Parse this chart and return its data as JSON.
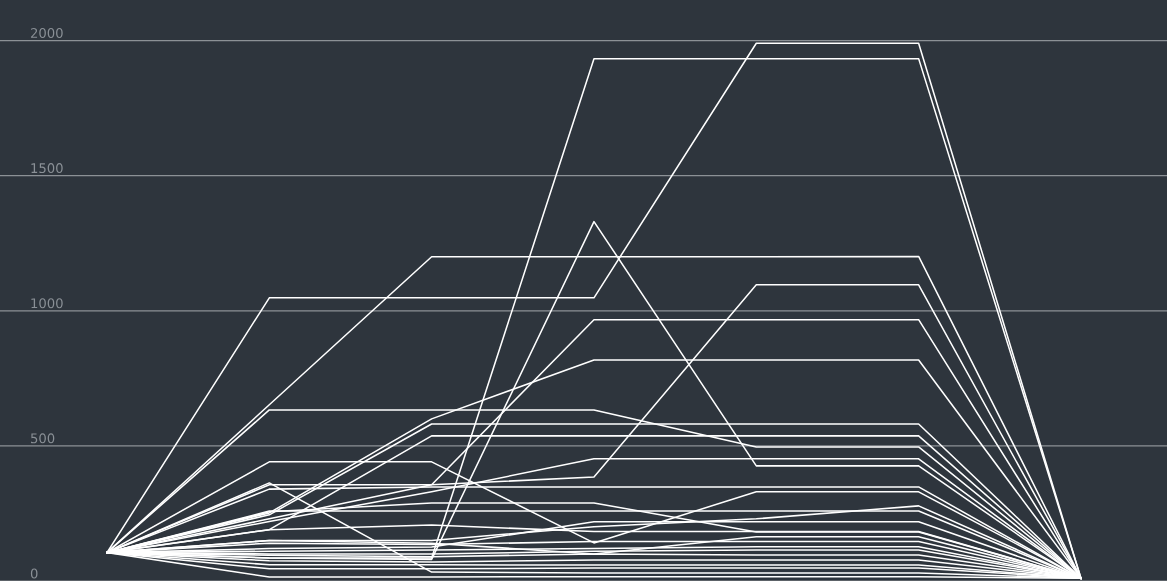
{
  "chart_data": {
    "type": "line",
    "categories": [
      null,
      null,
      null,
      null,
      null,
      null,
      null
    ],
    "ylim": [
      0,
      2150
    ],
    "yticks": [
      0,
      500,
      1000,
      1500,
      2000
    ],
    "grid": "y",
    "tick_labels": "y",
    "marker": "none",
    "line_style": "solid",
    "series": [
      {
        "color": "#ffffff",
        "values": [
          105,
          1048,
          1048,
          1048,
          1990,
          1990,
          10
        ]
      },
      {
        "color": "#ffffff",
        "values": [
          105,
          652,
          1200,
          1200,
          1200,
          1201,
          10
        ]
      },
      {
        "color": "#ffffff",
        "values": [
          105,
          85,
          85,
          1933,
          1933,
          1933,
          10
        ]
      },
      {
        "color": "#ffffff",
        "values": [
          105,
          85,
          80,
          1330,
          426,
          426,
          10
        ]
      },
      {
        "color": "#ffffff",
        "values": [
          105,
          356,
          356,
          385,
          1096,
          1096,
          10
        ]
      },
      {
        "color": "#ffffff",
        "values": [
          105,
          230,
          356,
          967,
          967,
          967,
          10
        ]
      },
      {
        "color": "#ffffff",
        "values": [
          105,
          252,
          600,
          818,
          818,
          818,
          10
        ]
      },
      {
        "color": "#ffffff",
        "values": [
          105,
          633,
          633,
          633,
          496,
          496,
          10
        ]
      },
      {
        "color": "#ffffff",
        "values": [
          105,
          245,
          581,
          581,
          581,
          581,
          10
        ]
      },
      {
        "color": "#ffffff",
        "values": [
          105,
          190,
          537,
          537,
          537,
          537,
          10
        ]
      },
      {
        "color": "#ffffff",
        "values": [
          105,
          220,
          330,
          452,
          452,
          452,
          10
        ]
      },
      {
        "color": "#ffffff",
        "values": [
          105,
          441,
          441,
          141,
          330,
          330,
          10
        ]
      },
      {
        "color": "#ffffff",
        "values": [
          105,
          363,
          33,
          30,
          30,
          30,
          10
        ]
      },
      {
        "color": "#ffffff",
        "values": [
          105,
          340,
          348,
          348,
          348,
          348,
          10
        ]
      },
      {
        "color": "#ffffff",
        "values": [
          105,
          150,
          150,
          201,
          230,
          278,
          10
        ]
      },
      {
        "color": "#ffffff",
        "values": [
          105,
          256,
          289,
          289,
          181,
          181,
          10
        ]
      },
      {
        "color": "#ffffff",
        "values": [
          105,
          259,
          259,
          259,
          259,
          259,
          10
        ]
      },
      {
        "color": "#ffffff",
        "values": [
          105,
          120,
          126,
          219,
          219,
          219,
          10
        ]
      },
      {
        "color": "#ffffff",
        "values": [
          105,
          190,
          207,
          183,
          183,
          183,
          10
        ]
      },
      {
        "color": "#ffffff",
        "values": [
          105,
          150,
          140,
          100,
          164,
          164,
          10
        ]
      },
      {
        "color": "#ffffff",
        "values": [
          105,
          140,
          135,
          146,
          146,
          146,
          10
        ]
      },
      {
        "color": "#ffffff",
        "values": [
          105,
          110,
          115,
          120,
          127,
          127,
          10
        ]
      },
      {
        "color": "#ffffff",
        "values": [
          105,
          100,
          100,
          110,
          115,
          115,
          10
        ]
      },
      {
        "color": "#ffffff",
        "values": [
          105,
          95,
          90,
          100,
          96,
          96,
          10
        ]
      },
      {
        "color": "#ffffff",
        "values": [
          105,
          75,
          70,
          78,
          78,
          78,
          10
        ]
      },
      {
        "color": "#ffffff",
        "values": [
          105,
          60,
          60,
          59,
          59,
          59,
          10
        ]
      },
      {
        "color": "#ffffff",
        "values": [
          105,
          45,
          45,
          48,
          48,
          48,
          10
        ]
      },
      {
        "color": "#ffffff",
        "values": [
          105,
          15,
          15,
          16,
          16,
          16,
          10
        ]
      }
    ]
  }
}
